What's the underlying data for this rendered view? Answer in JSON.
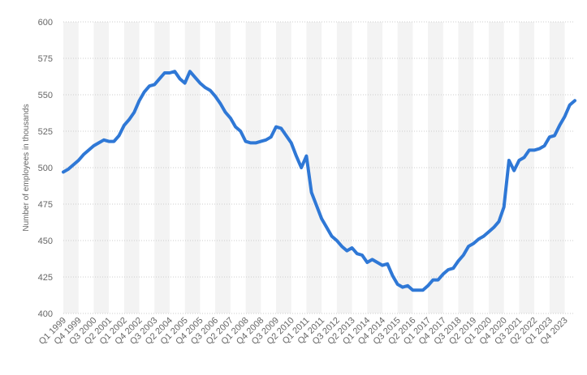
{
  "chart_data": {
    "type": "line",
    "title": "",
    "xlabel": "",
    "ylabel": "Number of employees in thousands",
    "ylim": [
      400,
      600
    ],
    "yticks": [
      400,
      425,
      450,
      475,
      500,
      525,
      550,
      575,
      600
    ],
    "grid": true,
    "colors": {
      "line": "#2f78d6",
      "grid": "#cccccc",
      "band": "#f3f3f3",
      "text": "#666666"
    },
    "xtick_labels": [
      "Q1 1999",
      "Q4 1999",
      "Q3 2000",
      "Q2 2001",
      "Q1 2002",
      "Q4 2002",
      "Q3 2003",
      "Q2 2004",
      "Q1 2005",
      "Q4 2005",
      "Q3 2006",
      "Q2 2007",
      "Q1 2008",
      "Q4 2008",
      "Q3 2009",
      "Q2 2010",
      "Q1 2011",
      "Q4 2011",
      "Q3 2012",
      "Q2 2013",
      "Q1 2014",
      "Q4 2014",
      "Q3 2015",
      "Q2 2016",
      "Q1 2017",
      "Q4 2017",
      "Q3 2018",
      "Q2 2019",
      "Q1 2020",
      "Q4 2020",
      "Q3 2021",
      "Q2 2022",
      "Q1 2023",
      "Q4 2023"
    ],
    "series": [
      {
        "values": [
          497,
          499,
          502,
          505,
          509,
          512,
          515,
          517,
          519,
          518,
          518,
          522,
          529,
          533,
          538,
          546,
          552,
          556,
          557,
          561,
          565,
          565,
          566,
          561,
          558,
          566,
          562,
          558,
          555,
          553,
          549,
          544,
          538,
          534,
          528,
          525,
          518,
          517,
          517,
          518,
          519,
          521,
          528,
          527,
          522,
          517,
          508,
          500,
          508,
          483,
          474,
          465,
          459,
          453,
          450,
          446,
          443,
          445,
          441,
          440,
          435,
          437,
          435,
          433,
          434,
          426,
          420,
          418,
          419,
          416,
          416,
          416,
          419,
          423,
          423,
          427,
          430,
          431,
          436,
          440,
          446,
          448,
          451,
          453,
          456,
          459,
          463,
          473,
          505,
          498,
          505,
          507,
          512,
          512,
          513,
          515,
          521,
          522,
          529,
          535,
          543,
          546
        ]
      }
    ]
  }
}
